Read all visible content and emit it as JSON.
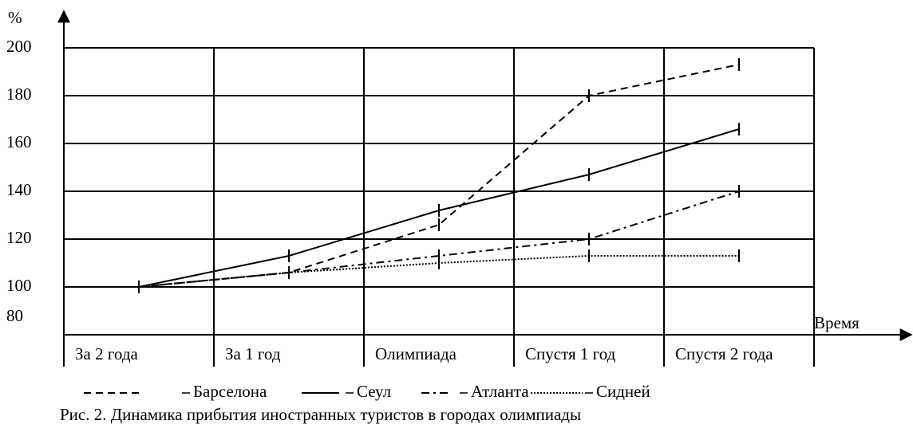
{
  "chart_data": {
    "type": "line",
    "caption": "Рис. 2. Динамика прибытия иностранных туристов в городах олимпиады",
    "y_label": "%",
    "x_label": "Время",
    "categories": [
      "За 2 года",
      "За 1 год",
      "Олимпиада",
      "Спустя 1 год",
      "Спустя 2 года"
    ],
    "series": [
      {
        "name": "Барселона",
        "color": "#000000",
        "style": "dashed",
        "values": [
          100,
          106,
          126,
          180,
          193
        ]
      },
      {
        "name": "Сеул",
        "color": "#000000",
        "style": "solid",
        "values": [
          100,
          113,
          132,
          147,
          166
        ]
      },
      {
        "name": "Атланта",
        "color": "#000000",
        "style": "dashdot",
        "values": [
          100,
          106,
          113,
          120,
          140
        ]
      },
      {
        "name": "Сидней",
        "color": "#000000",
        "style": "dotted",
        "values": [
          100,
          106,
          110,
          113,
          113
        ]
      }
    ],
    "ylim": [
      80,
      200
    ],
    "yticks": [
      80,
      100,
      120,
      140,
      160,
      180,
      200
    ],
    "grid": true
  }
}
